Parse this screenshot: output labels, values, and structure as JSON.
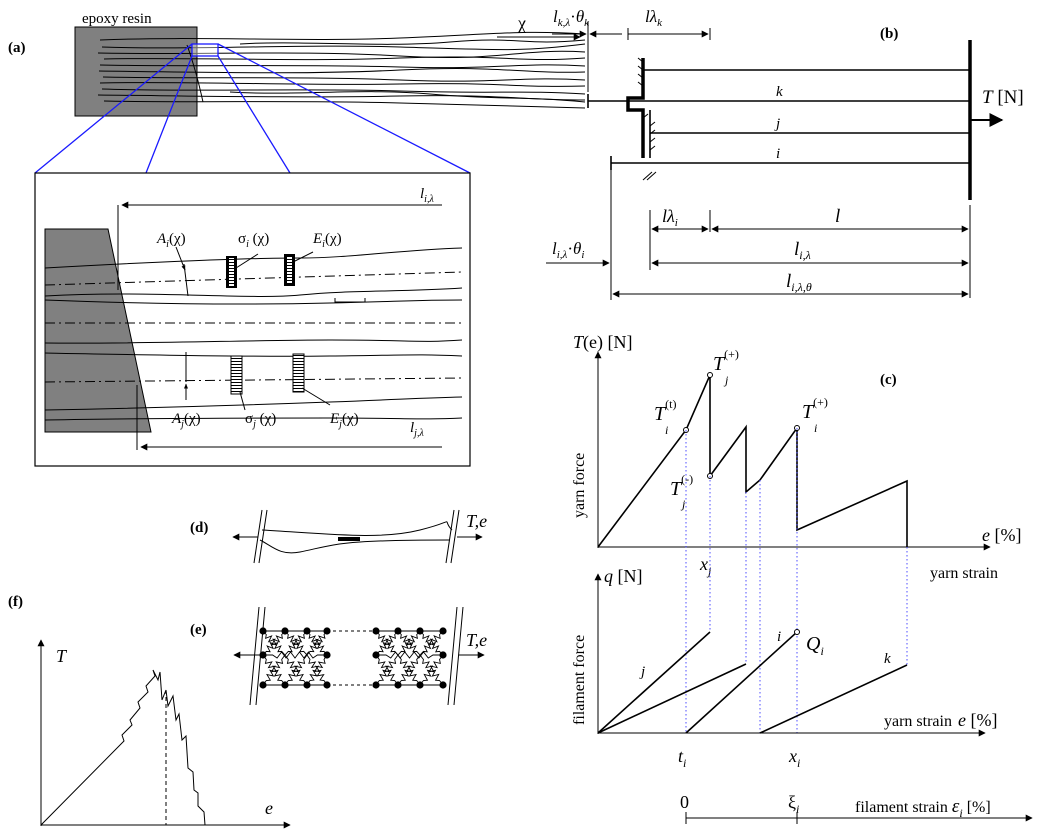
{
  "panels": {
    "a": "(a)",
    "b": "(b)",
    "c": "(c)",
    "d": "(d)",
    "e": "(e)",
    "f": "(f)"
  },
  "panel_a": {
    "resin": "epoxy resin",
    "chi": "χ",
    "l_i": "l",
    "l_i_sub": "i,λ",
    "l_j": "l",
    "l_j_sub": "j,λ",
    "A_i": "A",
    "A_i_sub": "i",
    "A_i_arg": "(χ)",
    "sigma_i": "σ",
    "sigma_i_sub": "i",
    "sigma_i_arg": " (χ)",
    "E_i": "E",
    "E_i_sub": "i",
    "E_i_arg": "(χ)",
    "A_j": "A",
    "A_j_sub": "j",
    "A_j_arg": "(χ)",
    "sigma_j": "σ",
    "sigma_j_sub": "j",
    "sigma_j_arg": " (χ)",
    "E_j": "E",
    "E_j_sub": "j",
    "E_j_arg": "(χ)"
  },
  "panel_b": {
    "top_l": "l",
    "top_l_sub": "k,λ",
    "top_dot": "·",
    "top_theta": "θ",
    "top_theta_sub": "k",
    "top_lam": "lλ",
    "top_lam_sub": "k",
    "k": "k",
    "j": "j",
    "i": "i",
    "T": "T",
    "T_unit": " [N]",
    "lam_i": "lλ",
    "lam_i_sub": "i",
    "l": "l",
    "li_l": "l",
    "li_l_sub": "i,λ",
    "li_dot": "·",
    "li_theta": "θ",
    "li_theta_sub": "i",
    "lil": "l",
    "lil_sub": "i,λ",
    "lilt": "l",
    "lilt_sub": "i,λ,θ"
  },
  "panel_c": {
    "yaxis": "T",
    "yaxis_arg": "(e)",
    "yaxis_unit": " [N]",
    "ylabel": "yarn force",
    "xaxis": "e",
    "xaxis_unit": " [%]",
    "xlabel": "yarn strain",
    "Tit": "T",
    "Tit_sub": "i",
    "Tit_sup": "(t)",
    "Tjp": "T",
    "Tjp_sub": "j",
    "Tjp_sup": "(+)",
    "Tjm": "T",
    "Tjm_sub": "j",
    "Tjm_sup": "(-)",
    "Tip": "T",
    "Tip_sub": "i",
    "Tip_sup": "(+)",
    "xj": "x",
    "xj_sub": "j",
    "q": "q",
    "q_unit": " [N]",
    "flabel": "filament force",
    "xaxis2": "yarn strain",
    "xaxis2_e": "e",
    "xaxis2_unit": " [%]",
    "j": "j",
    "i": "i",
    "k": "k",
    "Qi": "Q",
    "Qi_sub": "i",
    "ti": "t",
    "ti_sub": "i",
    "xi": "x",
    "xi_sub": "i",
    "zero": "0",
    "xi_greek": "ξ",
    "xi_greek_sub": "i",
    "fstrain": "filament strain ",
    "fstrain_eps": "ε",
    "fstrain_sub": "i",
    "fstrain_unit": " [%]"
  },
  "panel_d": {
    "label": "T,e"
  },
  "panel_e": {
    "label": "T,e"
  },
  "panel_f": {
    "T": "T",
    "e": "e"
  }
}
